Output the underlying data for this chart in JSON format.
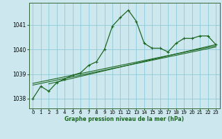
{
  "title": "Graphe pression niveau de la mer (hPa)",
  "bg_color": "#cce8ee",
  "grid_color": "#8fc8d8",
  "line_color": "#1a6620",
  "xlim": [
    -0.5,
    23.5
  ],
  "ylim": [
    1037.6,
    1041.9
  ],
  "yticks": [
    1038,
    1039,
    1040,
    1041
  ],
  "xticks": [
    0,
    1,
    2,
    3,
    4,
    5,
    6,
    7,
    8,
    9,
    10,
    11,
    12,
    13,
    14,
    15,
    16,
    17,
    18,
    19,
    20,
    21,
    22,
    23
  ],
  "main_series": [
    [
      0,
      1038.0
    ],
    [
      1,
      1038.5
    ],
    [
      2,
      1038.3
    ],
    [
      3,
      1038.65
    ],
    [
      4,
      1038.8
    ],
    [
      5,
      1038.95
    ],
    [
      6,
      1039.05
    ],
    [
      7,
      1039.35
    ],
    [
      8,
      1039.5
    ],
    [
      9,
      1040.0
    ],
    [
      10,
      1040.95
    ],
    [
      11,
      1041.3
    ],
    [
      12,
      1041.6
    ],
    [
      13,
      1041.15
    ],
    [
      14,
      1040.25
    ],
    [
      15,
      1040.05
    ],
    [
      16,
      1040.05
    ],
    [
      17,
      1039.9
    ],
    [
      18,
      1040.25
    ],
    [
      19,
      1040.45
    ],
    [
      20,
      1040.45
    ],
    [
      21,
      1040.55
    ],
    [
      22,
      1040.55
    ],
    [
      23,
      1040.2
    ]
  ],
  "trend_lines": [
    [
      [
        0,
        1038.55
      ],
      [
        23,
        1040.1
      ]
    ],
    [
      [
        0,
        1038.62
      ],
      [
        23,
        1040.15
      ]
    ],
    [
      [
        2,
        1038.6
      ],
      [
        23,
        1040.2
      ]
    ]
  ]
}
